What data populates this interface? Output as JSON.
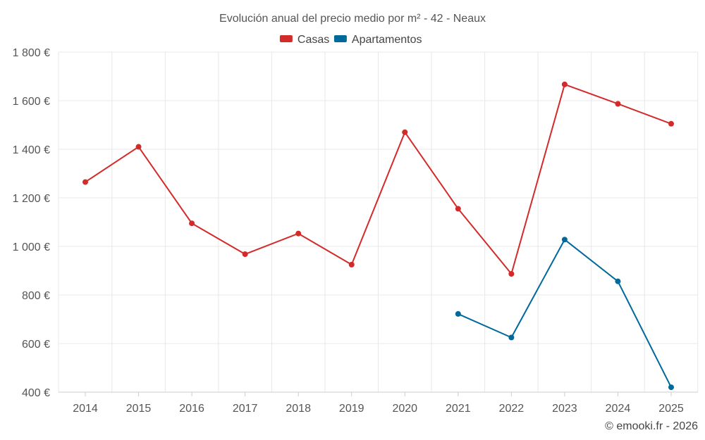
{
  "chart_data": {
    "type": "line",
    "title": "Evolución anual del precio medio por m² - 42 - Neaux",
    "categories": [
      "2014",
      "2015",
      "2016",
      "2017",
      "2018",
      "2019",
      "2020",
      "2021",
      "2022",
      "2023",
      "2024",
      "2025"
    ],
    "series": [
      {
        "name": "Casas",
        "color": "#d32a2a",
        "values": [
          1265,
          1410,
          1095,
          968,
          1053,
          925,
          1470,
          1155,
          887,
          1667,
          1587,
          1505
        ]
      },
      {
        "name": "Apartamentos",
        "color": "#00699b",
        "values": [
          null,
          null,
          null,
          null,
          null,
          null,
          null,
          722,
          625,
          1028,
          856,
          420
        ]
      }
    ],
    "y_ticks": [
      400,
      600,
      800,
      1000,
      1200,
      1400,
      1600,
      1800
    ],
    "y_tick_labels": [
      "400 €",
      "600 €",
      "800 €",
      "1 000 €",
      "1 200 €",
      "1 400 €",
      "1 600 €",
      "1 800 €"
    ],
    "ylim": [
      400,
      1800
    ],
    "xlabel": "",
    "ylabel": "",
    "grid": true,
    "legend_position": "top-center"
  },
  "credit": "© emooki.fr - 2026"
}
